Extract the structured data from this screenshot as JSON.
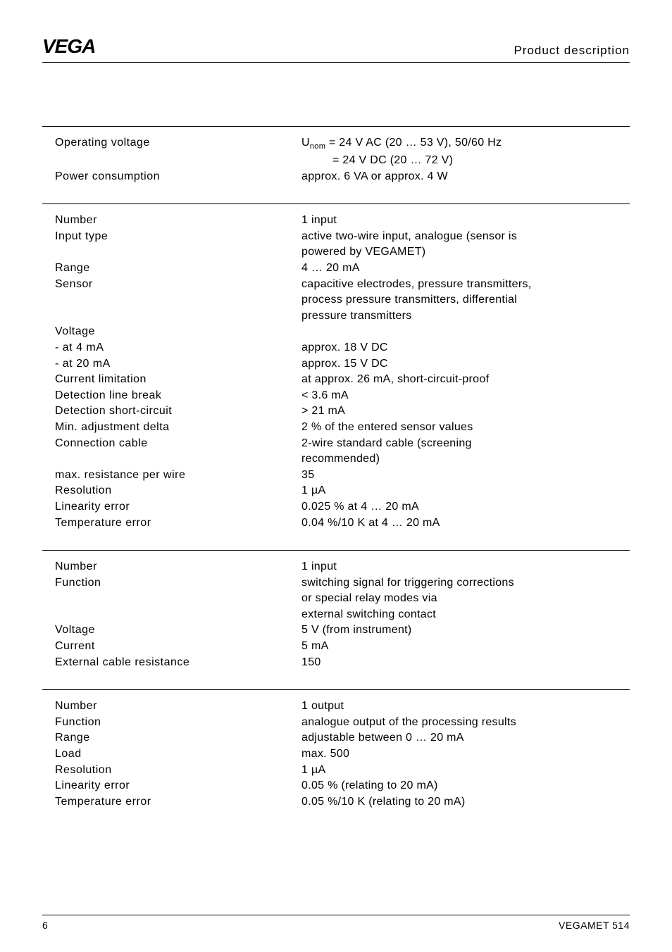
{
  "header": {
    "logo": "VEGA",
    "title": "Product description"
  },
  "sections": [
    {
      "rows": [
        {
          "label": "Operating voltage",
          "value": "U",
          "sub": "nom",
          "tail": "  = 24 V AC (20 … 53 V), 50/60 Hz"
        },
        {
          "label": "",
          "value": "= 24 V DC (20 … 72 V)",
          "indent": true
        },
        {
          "label": "Power consumption",
          "value": "approx. 6 VA or approx. 4 W"
        }
      ],
      "gap_after": 28
    },
    {
      "rows": [
        {
          "label": "Number",
          "value": "1 input"
        },
        {
          "label": "Input type",
          "value": "active two-wire input, analogue (sensor is"
        },
        {
          "label": "",
          "value": "powered by VEGAMET)"
        },
        {
          "label": "Range",
          "value": "4 … 20 mA"
        },
        {
          "label": "Sensor",
          "value": "capacitive electrodes, pressure transmitters,"
        },
        {
          "label": "",
          "value": "process pressure transmitters, differential"
        },
        {
          "label": "",
          "value": "pressure transmitters"
        },
        {
          "label": "Voltage",
          "value": ""
        },
        {
          "label": "-  at 4 mA",
          "value": "approx. 18 V DC"
        },
        {
          "label": "-  at 20 mA",
          "value": "approx. 15 V DC"
        },
        {
          "label": "Current limitation",
          "value": "at approx. 26 mA, short-circuit-proof"
        },
        {
          "label": "Detection line break",
          "value": "< 3.6 mA"
        },
        {
          "label": "Detection short-circuit",
          "value": "> 21 mA"
        },
        {
          "label": "Min. adjustment delta",
          "value": "2 % of the entered sensor values"
        },
        {
          "label": "Connection cable",
          "value": "2-wire standard cable (screening"
        },
        {
          "label": "",
          "value": "recommended)"
        },
        {
          "label": "max. resistance per wire",
          "value": "35"
        },
        {
          "label": "Resolution",
          "value": "1 µA"
        },
        {
          "label": "Linearity error",
          "value": "0.025 % at 4 … 20 mA"
        },
        {
          "label": "Temperature error",
          "value": "0.04 %/10 K at 4 … 20 mA"
        }
      ],
      "gap_after": 28
    },
    {
      "rows": [
        {
          "label": "Number",
          "value": "1 input"
        },
        {
          "label": "Function",
          "value": "switching signal for triggering corrections"
        },
        {
          "label": "",
          "value": "or special relay modes via"
        },
        {
          "label": "",
          "value": "external switching contact"
        },
        {
          "label": "Voltage",
          "value": "5 V (from instrument)"
        },
        {
          "label": "Current",
          "value": "5 mA"
        },
        {
          "label": "External cable resistance",
          "value": "  150"
        }
      ],
      "gap_after": 28
    },
    {
      "rows": [
        {
          "label": "Number",
          "value": "1 output"
        },
        {
          "label": "Function",
          "value": "analogue output of the processing results"
        },
        {
          "label": "Range",
          "value": "adjustable between 0 … 20 mA"
        },
        {
          "label": "Load",
          "value": "max. 500"
        },
        {
          "label": "Resolution",
          "value": "1 µA"
        },
        {
          "label": "Linearity error",
          "value": "0.05 % (relating to 20 mA)"
        },
        {
          "label": "Temperature error",
          "value": "0.05 %/10 K (relating to 20 mA)"
        }
      ],
      "gap_after": 0
    }
  ],
  "footer": {
    "page": "6",
    "doc": "VEGAMET 514"
  }
}
